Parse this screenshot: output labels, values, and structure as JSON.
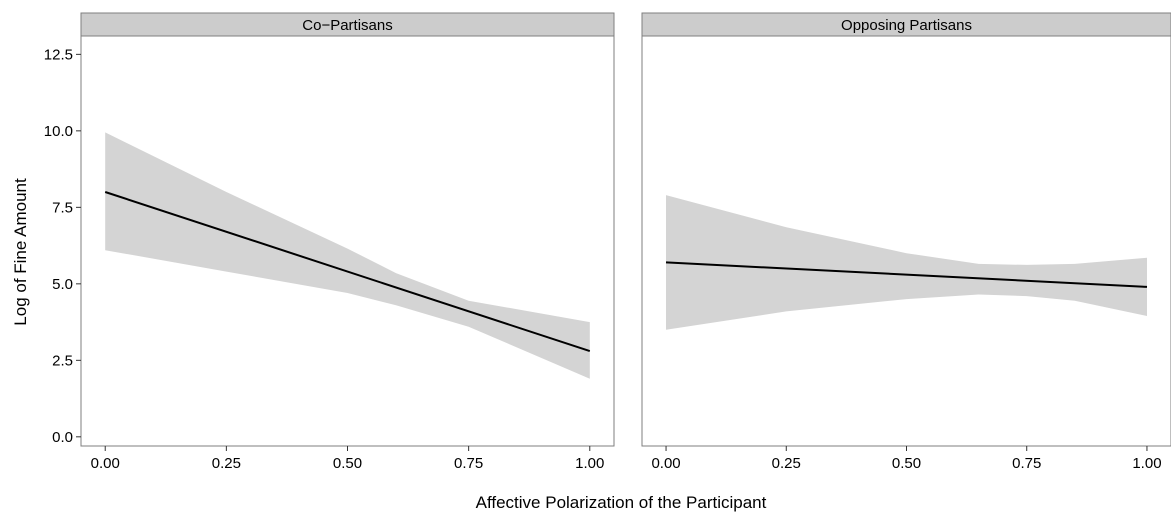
{
  "chart_data": {
    "type": "line",
    "xlabel": "Affective Polarization of the Participant",
    "ylabel": "Log of Fine Amount",
    "xlim": [
      -0.05,
      1.05
    ],
    "ylim": [
      -0.3,
      13.1
    ],
    "x_ticks": [
      "0.00",
      "0.25",
      "0.50",
      "0.75",
      "1.00"
    ],
    "y_ticks": [
      "0.0",
      "2.5",
      "5.0",
      "7.5",
      "10.0",
      "12.5"
    ],
    "grid": false,
    "panels": [
      {
        "label": "Co−Partisans",
        "line": {
          "x": [
            0.0,
            1.0
          ],
          "y": [
            8.0,
            2.8
          ]
        },
        "band": {
          "x": [
            0.0,
            0.25,
            0.5,
            0.6,
            0.75,
            1.0
          ],
          "upper": [
            9.95,
            8.0,
            6.15,
            5.35,
            4.45,
            3.75
          ],
          "lower": [
            6.1,
            5.4,
            4.7,
            4.3,
            3.6,
            1.9
          ]
        }
      },
      {
        "label": "Opposing Partisans",
        "line": {
          "x": [
            0.0,
            1.0
          ],
          "y": [
            5.7,
            4.9
          ]
        },
        "band": {
          "x": [
            0.0,
            0.25,
            0.5,
            0.65,
            0.75,
            0.85,
            1.0
          ],
          "upper": [
            7.9,
            6.85,
            6.0,
            5.65,
            5.62,
            5.65,
            5.85
          ],
          "lower": [
            3.5,
            4.1,
            4.5,
            4.65,
            4.6,
            4.45,
            3.95
          ]
        }
      }
    ],
    "colors": {
      "band": "#d4d4d4",
      "line": "#000000",
      "strip": "#cccccc",
      "panel_border": "#7f7f7f"
    }
  }
}
